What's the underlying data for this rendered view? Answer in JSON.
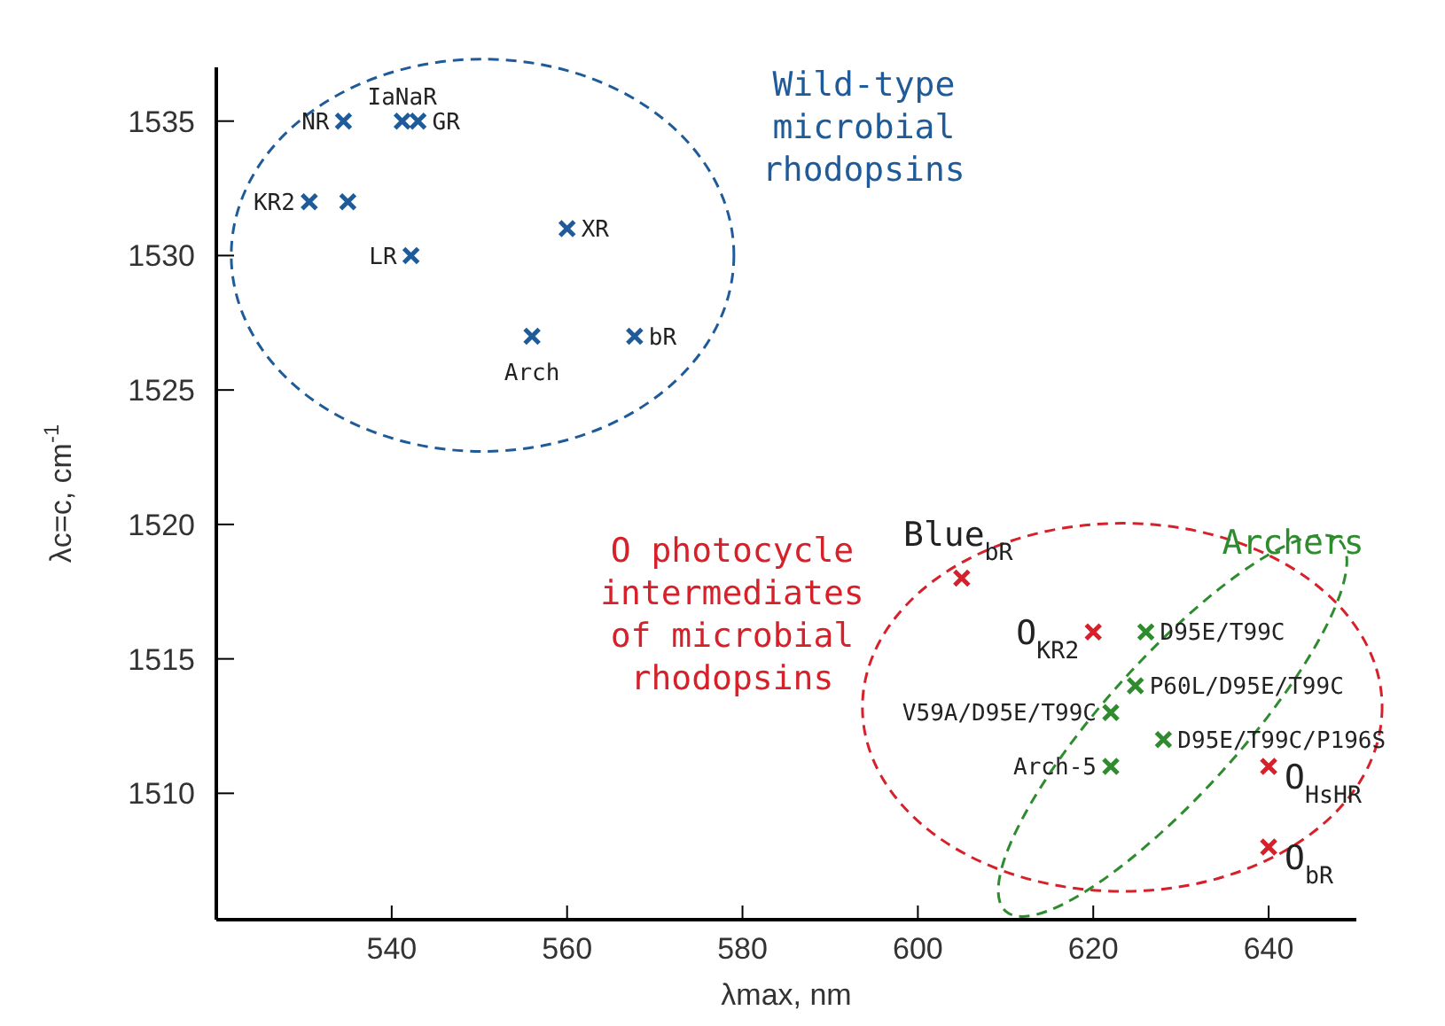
{
  "chart_data": {
    "type": "scatter",
    "xlabel": "λmax, nm",
    "ylabel": "λc=c, cm$^{-1}$",
    "xlim": [
      520,
      650
    ],
    "ylim": [
      1505.3,
      1537
    ],
    "xticks": [
      540,
      560,
      580,
      600,
      620,
      640
    ],
    "yticks": [
      1510,
      1515,
      1520,
      1525,
      1530,
      1535
    ],
    "marker": "cross",
    "grid": false,
    "series": [
      {
        "name": "Wild-type microbial rhodopsins",
        "color": "#1f5b99",
        "x": [
          534.5,
          541.2,
          543,
          530.6,
          535,
          542.2,
          560,
          556,
          567.7
        ],
        "values": [
          1535,
          1535,
          1535,
          1532,
          1532,
          1530,
          1531,
          1527,
          1527
        ]
      },
      {
        "name": "O photocycle intermediates of microbial rhodopsins",
        "color": "#d6202a",
        "x": [
          605,
          620,
          640,
          640
        ],
        "values": [
          1518,
          1516,
          1511,
          1508
        ]
      },
      {
        "name": "Archers",
        "color": "#2e8b2e",
        "x": [
          626,
          624.8,
          622,
          628,
          622
        ],
        "values": [
          1516,
          1514,
          1513,
          1512,
          1511
        ]
      }
    ],
    "annotations": [
      {
        "text": "NR",
        "x": 534.5,
        "y": 1535
      },
      {
        "text": "IaNaR",
        "x": 541.2,
        "y": 1535
      },
      {
        "text": "GR",
        "x": 543,
        "y": 1535
      },
      {
        "text": "KR2",
        "x": 530.6,
        "y": 1532
      },
      {
        "text": "LR",
        "x": 542.2,
        "y": 1530
      },
      {
        "text": "XR",
        "x": 560,
        "y": 1531
      },
      {
        "text": "Arch",
        "x": 556,
        "y": 1527
      },
      {
        "text": "bR",
        "x": 567.7,
        "y": 1527
      },
      {
        "text": "Blue$_{bR}$",
        "x": 605,
        "y": 1518
      },
      {
        "text": "O$_{KR2}$",
        "x": 620,
        "y": 1516
      },
      {
        "text": "O$_{HsHR}$",
        "x": 640,
        "y": 1511
      },
      {
        "text": "O$_{bR}$",
        "x": 640,
        "y": 1508
      },
      {
        "text": "D95E/T99C",
        "x": 626,
        "y": 1516
      },
      {
        "text": "P60L/D95E/T99C",
        "x": 624.8,
        "y": 1514
      },
      {
        "text": "V59A/D95E/T99C",
        "x": 622,
        "y": 1513
      },
      {
        "text": "D95E/T99C/P196S",
        "x": 628,
        "y": 1512
      },
      {
        "text": "Arch-5",
        "x": 622,
        "y": 1511
      }
    ]
  }
}
